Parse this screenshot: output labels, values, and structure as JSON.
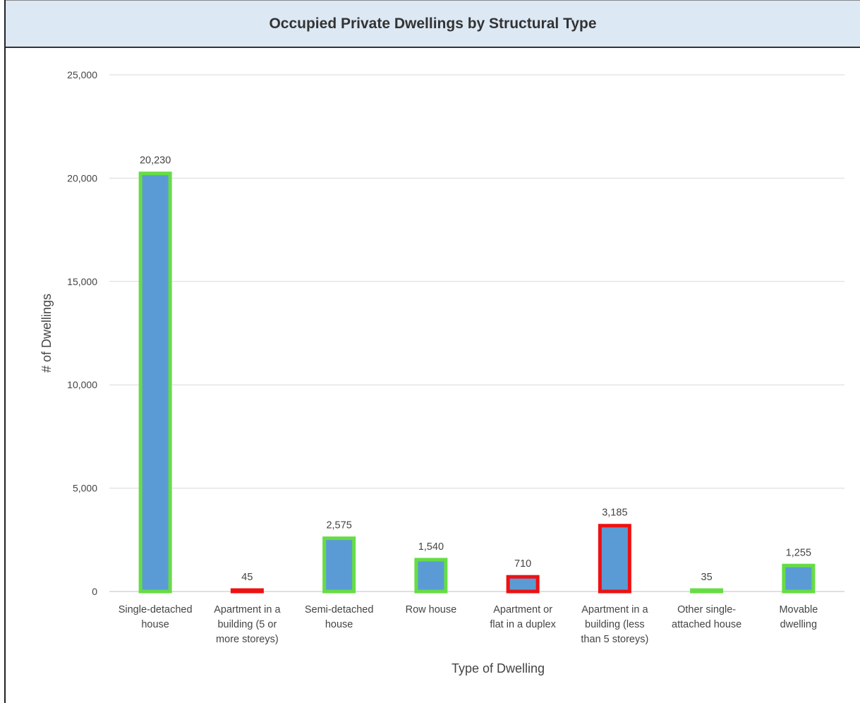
{
  "chart_data": {
    "type": "bar",
    "title": "Occupied Private Dwellings by Structural Type",
    "xlabel": "Type of Dwelling",
    "ylabel": "# of Dwellings",
    "ylim": [
      0,
      25000
    ],
    "yticks": [
      0,
      5000,
      10000,
      15000,
      20000,
      25000
    ],
    "ytick_labels": [
      "0",
      "5,000",
      "10,000",
      "15,000",
      "20,000",
      "25,000"
    ],
    "grid": true,
    "categories": [
      [
        "Single-detached",
        "house"
      ],
      [
        "Apartment in a",
        "building (5 or",
        "more storeys)"
      ],
      [
        "Semi-detached",
        "house"
      ],
      [
        "Row house"
      ],
      [
        "Apartment or",
        "flat in a duplex"
      ],
      [
        "Apartment in a",
        "building (less",
        "than 5 storeys)"
      ],
      [
        "Other single-",
        "attached house"
      ],
      [
        "Movable",
        "dwelling"
      ]
    ],
    "values": [
      20230,
      45,
      2575,
      1540,
      710,
      3185,
      35,
      1255
    ],
    "value_labels": [
      "20,230",
      "45",
      "2,575",
      "1,540",
      "710",
      "3,185",
      "35",
      "1,255"
    ],
    "bar_fill": "#5b9bd5",
    "outline_colors": [
      "#66dd44",
      "#ee1111",
      "#66dd44",
      "#66dd44",
      "#ee1111",
      "#ee1111",
      "#66dd44",
      "#66dd44"
    ]
  }
}
